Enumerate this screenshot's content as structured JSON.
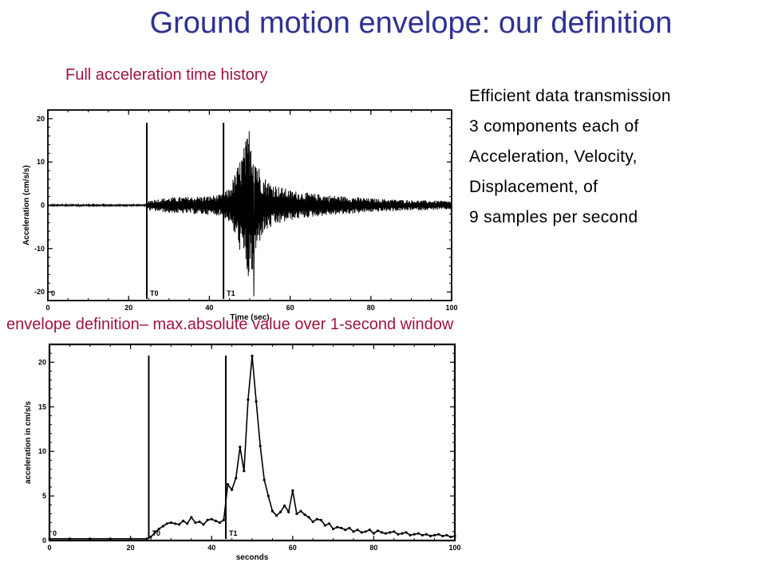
{
  "title": "Ground motion envelope: our definition",
  "captions": {
    "top": "Full acceleration time history",
    "bottom": "envelope definition– max.absolute value over 1-second window"
  },
  "bullets": [
    "Efficient data transmission",
    "3 components each of",
    "Acceleration, Velocity,",
    "Displacement, of",
    "9 samples per second"
  ],
  "colors": {
    "title": "#2e3192",
    "caption": "#a0143c",
    "ink": "#000000"
  },
  "chart_data": [
    {
      "type": "line",
      "xlabel": "Time (sec)",
      "ylabel": "Acceleration (cm/s/s)",
      "xlim": [
        0,
        100
      ],
      "ylim": [
        -22,
        22
      ],
      "xticks": [
        0,
        20,
        40,
        60,
        80,
        100
      ],
      "yticks": [
        -20,
        -10,
        0,
        10,
        20
      ],
      "markers": [
        {
          "label": "T0",
          "x": 24.5
        },
        {
          "label": "T1",
          "x": 43.5
        }
      ],
      "corner_label": "0",
      "series": [
        {
          "envelope_t": [
            0,
            24.5,
            25,
            30,
            35,
            40,
            43,
            45,
            47,
            49,
            50,
            51,
            52,
            53,
            55,
            57,
            60,
            65,
            70,
            75,
            80,
            85,
            90,
            95,
            100
          ],
          "envelope_amp": [
            0.2,
            0.2,
            1.2,
            1.8,
            2.0,
            2.2,
            2.5,
            4.0,
            9.0,
            15.0,
            19.0,
            15.0,
            10.0,
            7.0,
            5.5,
            4.5,
            3.5,
            2.8,
            2.3,
            2.0,
            1.6,
            1.4,
            1.2,
            1.1,
            1.0
          ],
          "peak": {
            "x": 51,
            "y": -21
          }
        }
      ]
    },
    {
      "type": "line",
      "xlabel": "seconds",
      "ylabel": "acceleration in cm/s/s",
      "xlim": [
        0,
        100
      ],
      "ylim": [
        0,
        22
      ],
      "xticks": [
        0,
        20,
        40,
        60,
        80,
        100
      ],
      "yticks": [
        0,
        5,
        10,
        15,
        20
      ],
      "markers": [
        {
          "label": "T0",
          "x": 24.5
        },
        {
          "label": "T1",
          "x": 43.5
        }
      ],
      "corner_label": "0",
      "series": [
        {
          "x": [
            0,
            5,
            10,
            15,
            20,
            24,
            25,
            26,
            27,
            28,
            29,
            30,
            31,
            32,
            33,
            34,
            35,
            36,
            37,
            38,
            39,
            40,
            41,
            42,
            43,
            44,
            45,
            46,
            47,
            48,
            49,
            50,
            51,
            52,
            53,
            54,
            55,
            56,
            57,
            58,
            59,
            60,
            61,
            62,
            63,
            64,
            65,
            66,
            67,
            68,
            69,
            70,
            71,
            72,
            73,
            74,
            75,
            76,
            77,
            78,
            79,
            80,
            81,
            82,
            83,
            84,
            85,
            86,
            87,
            88,
            89,
            90,
            91,
            92,
            93,
            94,
            95,
            96,
            97,
            98,
            99,
            100
          ],
          "y": [
            0.2,
            0.2,
            0.2,
            0.2,
            0.2,
            0.2,
            0.4,
            0.9,
            1.3,
            1.6,
            1.9,
            2.0,
            1.9,
            1.8,
            2.2,
            1.9,
            2.6,
            2.0,
            2.1,
            1.8,
            2.3,
            2.4,
            2.2,
            2.0,
            2.3,
            6.3,
            5.7,
            7.0,
            10.5,
            7.8,
            15.8,
            20.7,
            15.6,
            10.6,
            6.8,
            5.0,
            3.3,
            2.8,
            3.2,
            3.9,
            3.2,
            5.6,
            3.0,
            3.3,
            2.9,
            2.6,
            2.1,
            2.4,
            2.3,
            1.7,
            1.9,
            1.3,
            1.5,
            1.4,
            1.2,
            1.4,
            1.0,
            1.2,
            0.9,
            1.0,
            1.2,
            0.8,
            1.1,
            0.9,
            0.8,
            0.9,
            1.0,
            0.7,
            0.8,
            0.9,
            0.6,
            0.7,
            0.8,
            0.6,
            0.7,
            0.5,
            0.6,
            0.7,
            0.5,
            0.6,
            0.4,
            0.5
          ]
        }
      ]
    }
  ]
}
